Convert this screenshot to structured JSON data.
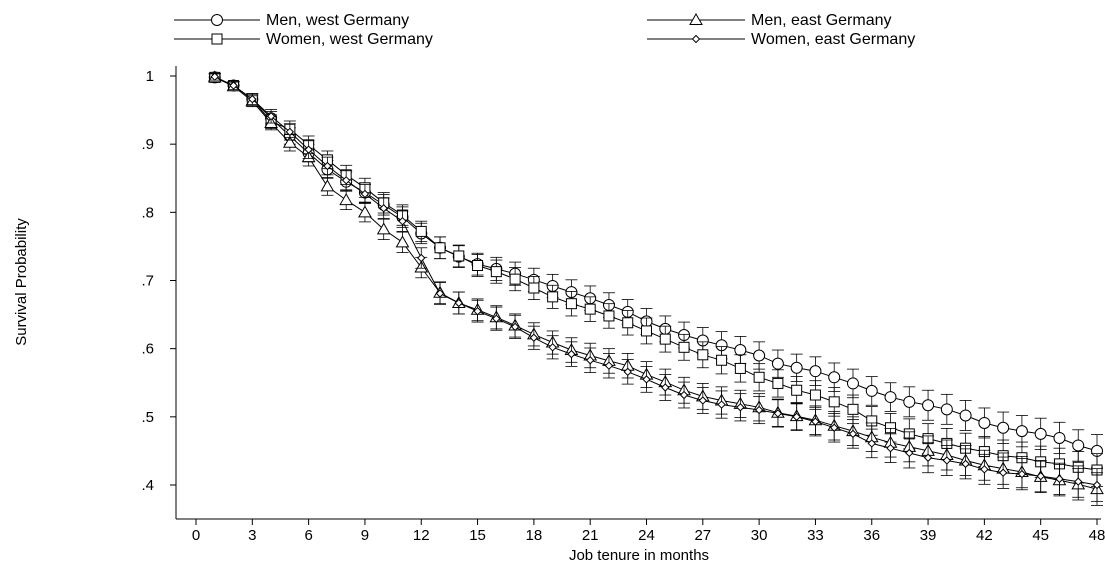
{
  "chart_data": {
    "type": "line",
    "title": "",
    "xlabel": "Job tenure in months",
    "ylabel": "Survival Probability",
    "xlim": [
      0,
      48
    ],
    "ylim": [
      0.4,
      1.0
    ],
    "grid": false,
    "legend_position": "top",
    "x_ticks": [
      0,
      3,
      6,
      9,
      12,
      15,
      18,
      21,
      24,
      27,
      30,
      33,
      36,
      39,
      42,
      45,
      48
    ],
    "y_ticks": [
      {
        "value": 1.0,
        "label": "1"
      },
      {
        "value": 0.9,
        "label": ".9"
      },
      {
        "value": 0.8,
        "label": ".8"
      },
      {
        "value": 0.7,
        "label": ".7"
      },
      {
        "value": 0.6,
        "label": ".6"
      },
      {
        "value": 0.5,
        "label": ".5"
      },
      {
        "value": 0.4,
        "label": ".4"
      }
    ],
    "x": [
      1,
      2,
      3,
      4,
      5,
      6,
      7,
      8,
      9,
      10,
      11,
      12,
      13,
      14,
      15,
      16,
      17,
      18,
      19,
      20,
      21,
      22,
      23,
      24,
      25,
      26,
      27,
      28,
      29,
      30,
      31,
      32,
      33,
      34,
      35,
      36,
      37,
      38,
      39,
      40,
      41,
      42,
      43,
      44,
      45,
      46,
      47,
      48
    ],
    "series": [
      {
        "name": "Men, west Germany",
        "marker": "circle",
        "values": [
          0.998,
          0.986,
          0.966,
          0.938,
          0.912,
          0.887,
          0.863,
          0.845,
          0.829,
          0.811,
          0.793,
          0.769,
          0.748,
          0.735,
          0.724,
          0.717,
          0.71,
          0.701,
          0.692,
          0.683,
          0.674,
          0.664,
          0.654,
          0.64,
          0.629,
          0.62,
          0.612,
          0.605,
          0.598,
          0.59,
          0.578,
          0.572,
          0.567,
          0.558,
          0.549,
          0.538,
          0.529,
          0.522,
          0.517,
          0.511,
          0.502,
          0.491,
          0.484,
          0.479,
          0.475,
          0.469,
          0.458,
          0.45
        ],
        "ci_half": [
          0.005,
          0.006,
          0.008,
          0.01,
          0.012,
          0.013,
          0.013,
          0.014,
          0.014,
          0.015,
          0.015,
          0.015,
          0.016,
          0.016,
          0.016,
          0.017,
          0.017,
          0.017,
          0.017,
          0.018,
          0.018,
          0.018,
          0.018,
          0.019,
          0.019,
          0.019,
          0.019,
          0.02,
          0.02,
          0.02,
          0.02,
          0.02,
          0.021,
          0.021,
          0.021,
          0.021,
          0.021,
          0.022,
          0.022,
          0.022,
          0.022,
          0.022,
          0.023,
          0.023,
          0.023,
          0.023,
          0.023,
          0.024
        ]
      },
      {
        "name": "Women, west Germany",
        "marker": "square",
        "values": [
          0.998,
          0.986,
          0.966,
          0.933,
          0.922,
          0.899,
          0.877,
          0.855,
          0.836,
          0.814,
          0.796,
          0.772,
          0.748,
          0.736,
          0.722,
          0.713,
          0.702,
          0.689,
          0.676,
          0.666,
          0.658,
          0.648,
          0.638,
          0.626,
          0.614,
          0.602,
          0.591,
          0.583,
          0.571,
          0.558,
          0.549,
          0.539,
          0.532,
          0.522,
          0.511,
          0.494,
          0.484,
          0.475,
          0.468,
          0.461,
          0.454,
          0.449,
          0.443,
          0.44,
          0.434,
          0.431,
          0.426,
          0.422
        ],
        "ci_half": [
          0.005,
          0.006,
          0.008,
          0.01,
          0.012,
          0.013,
          0.013,
          0.014,
          0.014,
          0.015,
          0.015,
          0.015,
          0.016,
          0.016,
          0.016,
          0.017,
          0.017,
          0.017,
          0.017,
          0.018,
          0.018,
          0.018,
          0.018,
          0.019,
          0.019,
          0.019,
          0.019,
          0.02,
          0.02,
          0.02,
          0.02,
          0.02,
          0.021,
          0.021,
          0.021,
          0.021,
          0.021,
          0.022,
          0.022,
          0.022,
          0.022,
          0.022,
          0.023,
          0.023,
          0.023,
          0.023,
          0.023,
          0.024
        ]
      },
      {
        "name": "Men, east Germany",
        "marker": "triangle",
        "values": [
          0.998,
          0.985,
          0.963,
          0.931,
          0.902,
          0.881,
          0.838,
          0.818,
          0.8,
          0.775,
          0.756,
          0.719,
          0.682,
          0.667,
          0.657,
          0.646,
          0.634,
          0.621,
          0.609,
          0.598,
          0.59,
          0.582,
          0.575,
          0.562,
          0.551,
          0.539,
          0.53,
          0.524,
          0.519,
          0.514,
          0.506,
          0.501,
          0.495,
          0.487,
          0.479,
          0.47,
          0.462,
          0.456,
          0.45,
          0.444,
          0.436,
          0.429,
          0.424,
          0.419,
          0.412,
          0.407,
          0.401,
          0.394
        ],
        "ci_half": [
          0.005,
          0.006,
          0.008,
          0.01,
          0.012,
          0.013,
          0.013,
          0.014,
          0.014,
          0.015,
          0.015,
          0.015,
          0.016,
          0.016,
          0.016,
          0.017,
          0.017,
          0.017,
          0.017,
          0.018,
          0.018,
          0.018,
          0.018,
          0.019,
          0.019,
          0.019,
          0.019,
          0.02,
          0.02,
          0.02,
          0.02,
          0.02,
          0.021,
          0.021,
          0.021,
          0.021,
          0.021,
          0.022,
          0.022,
          0.022,
          0.022,
          0.022,
          0.023,
          0.023,
          0.023,
          0.023,
          0.023,
          0.024
        ]
      },
      {
        "name": "Women, east Germany",
        "marker": "diamond",
        "values": [
          0.999,
          0.986,
          0.966,
          0.941,
          0.918,
          0.892,
          0.868,
          0.847,
          0.827,
          0.806,
          0.787,
          0.733,
          0.681,
          0.667,
          0.655,
          0.644,
          0.632,
          0.616,
          0.602,
          0.592,
          0.583,
          0.575,
          0.566,
          0.555,
          0.543,
          0.532,
          0.524,
          0.518,
          0.514,
          0.51,
          0.505,
          0.5,
          0.493,
          0.484,
          0.475,
          0.461,
          0.454,
          0.447,
          0.44,
          0.436,
          0.431,
          0.423,
          0.418,
          0.416,
          0.413,
          0.409,
          0.405,
          0.4
        ],
        "ci_half": [
          0.005,
          0.006,
          0.008,
          0.01,
          0.012,
          0.013,
          0.013,
          0.014,
          0.014,
          0.015,
          0.015,
          0.015,
          0.016,
          0.016,
          0.016,
          0.017,
          0.017,
          0.017,
          0.017,
          0.018,
          0.018,
          0.018,
          0.018,
          0.019,
          0.019,
          0.019,
          0.019,
          0.02,
          0.02,
          0.02,
          0.02,
          0.02,
          0.021,
          0.021,
          0.021,
          0.021,
          0.021,
          0.022,
          0.022,
          0.022,
          0.022,
          0.022,
          0.023,
          0.023,
          0.023,
          0.023,
          0.023,
          0.024
        ]
      }
    ]
  }
}
